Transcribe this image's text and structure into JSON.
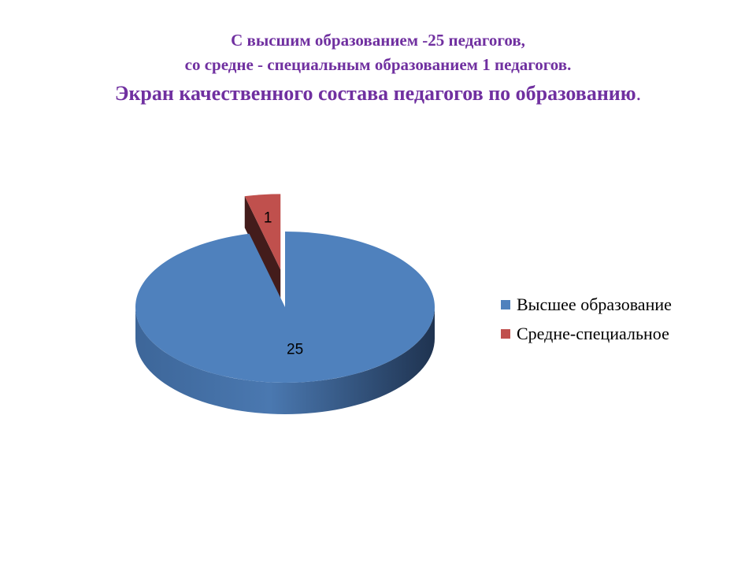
{
  "header": {
    "line1": "С высшим образованием -25 педагогов,",
    "line2": "со средне - специальным образованием 1 педагогов.",
    "title": "Экран качественного состава педагогов по образованию",
    "title_end": "."
  },
  "chart_data": {
    "type": "pie",
    "three_d": true,
    "exploded": "Средне-специальное",
    "categories": [
      "Высшее образование",
      "Средне-специальное"
    ],
    "values": [
      25,
      1
    ],
    "data_labels": [
      "25",
      "1"
    ],
    "colors": [
      "#4f81bd",
      "#c0504d"
    ],
    "legend_position": "right"
  },
  "legend": {
    "items": [
      {
        "label": "Высшее образование",
        "color": "#4f81bd"
      },
      {
        "label": "Средне-специальное",
        "color": "#c0504d"
      }
    ]
  }
}
